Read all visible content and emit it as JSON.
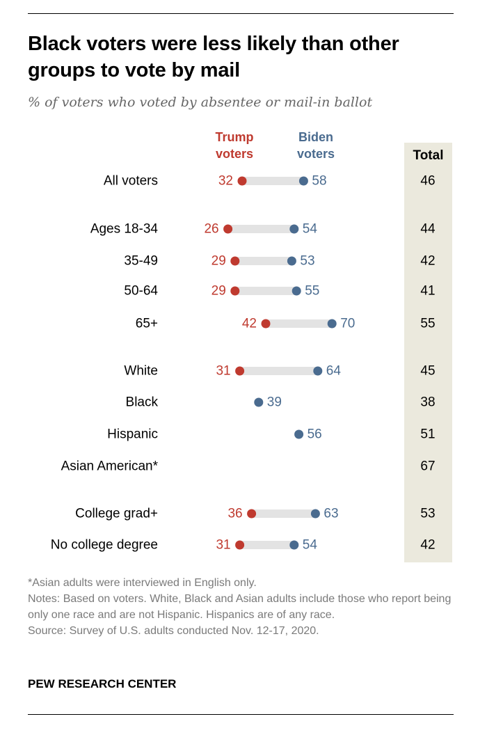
{
  "title": "Black voters were less likely than other groups to vote by mail",
  "subtitle": "% of voters who voted by absentee or mail-in ballot",
  "headers": {
    "trump": "Trump voters",
    "biden": "Biden voters",
    "total": "Total"
  },
  "colors": {
    "trump": "#bf3a2f",
    "biden": "#4a6b8f",
    "bar": "#e3e3e3",
    "total_bg": "#ebe9dd"
  },
  "chart_data": {
    "type": "dot-plot",
    "title": "Black voters were less likely than other groups to vote by mail",
    "subtitle": "% of voters who voted by absentee or mail-in ballot",
    "series": [
      {
        "name": "Trump voters"
      },
      {
        "name": "Biden voters"
      },
      {
        "name": "Total"
      }
    ],
    "rows": [
      {
        "label": "All voters",
        "trump": 32,
        "biden": 58,
        "total": 46
      },
      {
        "label": "Ages 18-34",
        "trump": 26,
        "biden": 54,
        "total": 44
      },
      {
        "label": "35-49",
        "trump": 29,
        "biden": 53,
        "total": 42
      },
      {
        "label": "50-64",
        "trump": 29,
        "biden": 55,
        "total": 41
      },
      {
        "label": "65+",
        "trump": 42,
        "biden": 70,
        "total": 55
      },
      {
        "label": "White",
        "trump": 31,
        "biden": 64,
        "total": 45
      },
      {
        "label": "Black",
        "trump": null,
        "biden": 39,
        "total": 38
      },
      {
        "label": "Hispanic",
        "trump": null,
        "biden": 56,
        "total": 51
      },
      {
        "label": "Asian American*",
        "trump": null,
        "biden": null,
        "total": 67
      },
      {
        "label": "College grad+",
        "trump": 36,
        "biden": 63,
        "total": 53
      },
      {
        "label": "No college degree",
        "trump": 31,
        "biden": 54,
        "total": 42
      }
    ]
  },
  "footnote": "*Asian adults were interviewed in English only.",
  "notes": "Notes: Based on voters. White, Black and Asian adults include those who report being only one race and are not Hispanic. Hispanics are of any race.",
  "source": "Source: Survey of U.S. adults conducted Nov. 12-17, 2020.",
  "brand": "PEW RESEARCH CENTER"
}
